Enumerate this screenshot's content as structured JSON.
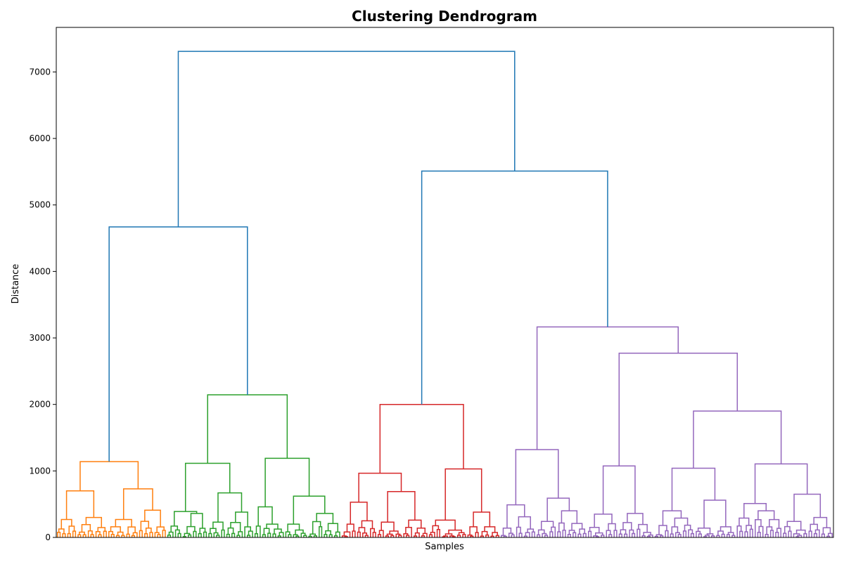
{
  "chart_data": {
    "type": "dendrogram",
    "title": "Clustering Dendrogram",
    "xlabel": "Samples",
    "ylabel": "Distance",
    "ylim": [
      0,
      7670
    ],
    "yticks": [
      0,
      1000,
      2000,
      3000,
      4000,
      5000,
      6000,
      7000
    ],
    "x_tick_labels_shown": false,
    "grid": false,
    "clusters": [
      {
        "color": "#ff7f0e",
        "leaf_count": 43,
        "merge_distance": 1140
      },
      {
        "color": "#2ca02c",
        "leaf_count": 68,
        "merge_distance": 2145
      },
      {
        "color": "#d62728",
        "leaf_count": 62,
        "merge_distance": 2000
      },
      {
        "color": "#9467bd",
        "leaf_count": 130,
        "merge_distance": 3165
      }
    ],
    "above_threshold_color": "#1f77b4",
    "top_links": [
      {
        "left": "orange",
        "right": "green",
        "distance": 4670
      },
      {
        "left": "red",
        "right": "purple",
        "distance": 5510
      },
      {
        "left": "orange+green",
        "right": "red+purple",
        "distance": 7310
      }
    ],
    "cluster_internal_links": {
      "orange": [
        {
          "distance": 1140,
          "children": [
            "o_a",
            "o_b"
          ]
        },
        {
          "distance": 700,
          "node": "o_a"
        },
        {
          "distance": 730,
          "node": "o_b"
        }
      ],
      "green": [
        {
          "distance": 2145,
          "children": [
            "g_a",
            "g_b"
          ]
        },
        {
          "distance": 1115,
          "node": "g_a"
        },
        {
          "distance": 1190,
          "node": "g_b"
        },
        {
          "distance": 670,
          "node": "g_a2"
        },
        {
          "distance": 620,
          "node": "g_b2"
        }
      ],
      "red": [
        {
          "distance": 2000,
          "children": [
            "r_a",
            "r_b"
          ]
        },
        {
          "distance": 965,
          "node": "r_a"
        },
        {
          "distance": 1030,
          "node": "r_b"
        },
        {
          "distance": 690,
          "node": "r_a2"
        }
      ],
      "purple": [
        {
          "distance": 3165,
          "children": [
            "p_a",
            "p_b"
          ]
        },
        {
          "distance": 1320,
          "node": "p_a"
        },
        {
          "distance": 2770,
          "node": "p_b"
        },
        {
          "distance": 1075,
          "node": "p_b1"
        },
        {
          "distance": 1900,
          "node": "p_b2"
        },
        {
          "distance": 1040,
          "node": "p_b2a"
        },
        {
          "distance": 1105,
          "node": "p_b2b"
        }
      ]
    }
  }
}
